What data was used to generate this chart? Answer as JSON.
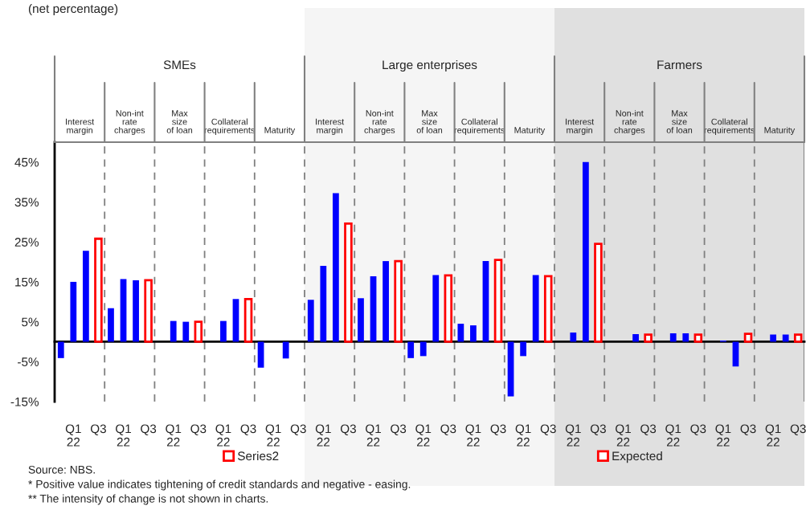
{
  "chart_data": {
    "type": "bar",
    "subtitle": "(net percentage)",
    "categories": [
      null,
      "Q1\n22",
      null,
      "Q3",
      null,
      "Q1\n22",
      null,
      "Q3",
      null,
      "Q1\n22",
      null,
      "Q3",
      null,
      "Q1\n22",
      null,
      "Q3",
      null,
      "Q1\n22",
      null,
      "Q3",
      null,
      "Q1\n22",
      null,
      "Q3",
      null,
      "Q1\n22",
      null,
      "Q3",
      null,
      "Q1\n22",
      null,
      "Q3",
      null,
      "Q1\n22",
      null,
      "Q3",
      null,
      "Q1\n22",
      null,
      "Q3",
      null,
      "Q1\n22",
      null,
      "Q3",
      null,
      "Q1\n22",
      null,
      "Q3",
      null,
      "Q1\n22",
      null,
      "Q3",
      null,
      "Q1\n22",
      null,
      "Q3",
      null,
      "Q1\n22",
      null,
      "Q3"
    ],
    "series": [
      {
        "color": "#0000ff",
        "values": [
          -4.1,
          15,
          22.8,
          null,
          8.4,
          15.7,
          15.4,
          null,
          null,
          5.2,
          5,
          null,
          null,
          5.2,
          10.7,
          null,
          -6.5,
          null,
          -4.2,
          null,
          10.5,
          19,
          37.2,
          null,
          10.9,
          16.4,
          20.2,
          null,
          -4.1,
          -3.6,
          16.7,
          null,
          4.5,
          4.1,
          20.2,
          null,
          -13.7,
          -3.6,
          16.7,
          null,
          null,
          2.3,
          45,
          null,
          null,
          null,
          1.9,
          null,
          null,
          2.1,
          2.1,
          null,
          null,
          0.3,
          -6.2,
          null,
          null,
          1.8,
          1.8,
          null
        ]
      },
      {
        "name": "Series2",
        "color": "#ff0000",
        "values": [
          null,
          null,
          null,
          null,
          null,
          null,
          null,
          null,
          null,
          null,
          null,
          null,
          null,
          null,
          null,
          null,
          null,
          null,
          null,
          null,
          null,
          null,
          null,
          null,
          null,
          null,
          null,
          null,
          null,
          null,
          null,
          null,
          null,
          null,
          null,
          null,
          null,
          null,
          null,
          null,
          null,
          null,
          null,
          null,
          null,
          null,
          null,
          null,
          null,
          null,
          null,
          null,
          null,
          null,
          null,
          null,
          null,
          null,
          null,
          null
        ]
      },
      {
        "name": "Expected",
        "color": "#ff0000",
        "values": [
          null,
          null,
          null,
          25.8,
          null,
          null,
          null,
          15.4,
          null,
          null,
          null,
          5,
          null,
          null,
          null,
          10.7,
          null,
          null,
          null,
          null,
          null,
          null,
          null,
          29.6,
          null,
          null,
          null,
          20.2,
          null,
          null,
          null,
          16.6,
          null,
          null,
          null,
          20.5,
          null,
          null,
          null,
          16.4,
          null,
          null,
          null,
          24.5,
          null,
          null,
          null,
          1.8,
          null,
          null,
          null,
          1.8,
          null,
          null,
          null,
          2,
          null,
          null,
          null,
          1.8
        ]
      }
    ],
    "ylim": [
      -15,
      50
    ],
    "yticks": [
      {
        "value": -15,
        "label": "-15%"
      },
      {
        "value": -5,
        "label": "-5%"
      },
      {
        "value": 5,
        "label": "5%"
      },
      {
        "value": 15,
        "label": "15%"
      },
      {
        "value": 25,
        "label": "25%"
      },
      {
        "value": 35,
        "label": "35%"
      },
      {
        "value": 45,
        "label": "45%"
      }
    ],
    "annotations": [
      "SMEs",
      "Large enterprises",
      "Farmers",
      "Interest\nmargin",
      "Non-int\nrate\ncharges",
      "Max\nsize\nof loan",
      "Collateral\nrequirements",
      "Maturity",
      "Interest\nmargin",
      "Non-int\nrate\ncharges",
      "Max\nsize\nof loan",
      "Collateral\nrequirements",
      "Maturity",
      "Interest\nmargin",
      "Non-int\nrate\ncharges",
      "Max\nsize\nof loan",
      "Collateral\nrequirements",
      "Maturity",
      "Source: NBS.",
      "* Positive value indicates tightening of credit standards and negative - easing.",
      "** The intensity of change is not shown in charts."
    ],
    "legend": "bottom",
    "grid": false
  }
}
